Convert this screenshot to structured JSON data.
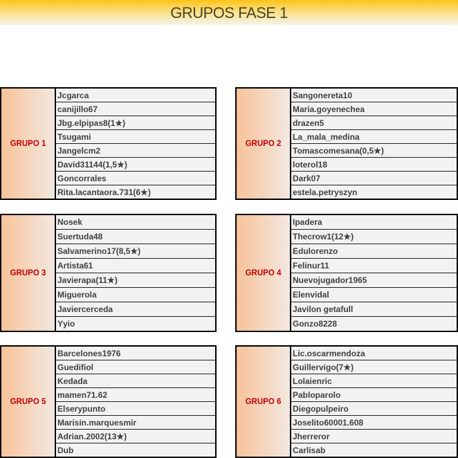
{
  "title": "GRUPOS FASE 1",
  "colors": {
    "group_label": "#c00000",
    "header_top": "#fcc419",
    "label_gradient": "#f8c39a"
  },
  "groups": [
    {
      "label": "GRUPO 1",
      "players": [
        "Jcgarca",
        "canijillo67",
        "Jbg.elpipas8(1★)",
        "Tsugami",
        "Jangelcm2",
        "David31144(1,5★)",
        "Goncorrales",
        "Rita.lacantaora.731(6★)"
      ]
    },
    {
      "label": "GRUPO 2",
      "players": [
        "Sangonereta10",
        "Maria.goyenechea",
        "drazen5",
        "La_mala_medina",
        "Tomascomesana(0,5★)",
        "loterol18",
        "Dark07",
        "estela.petryszyn"
      ]
    },
    {
      "label": "GRUPO 3",
      "players": [
        "Nosek",
        "Suertuda48",
        "Salvamerino17(8,5★)",
        "Artista61",
        "Javierapa(11★)",
        "Miguerola",
        "Javiercerceda",
        "Yyio"
      ]
    },
    {
      "label": "GRUPO 4",
      "players": [
        "Ipadera",
        "Thecrow1(12★)",
        "Edulorenzo",
        "Felinur11",
        "Nuevojugador1965",
        "Elenvidal",
        "Javilon getafull",
        "Gonzo8228"
      ]
    },
    {
      "label": "GRUPO 5",
      "players": [
        "Barcelones1976",
        "Guedifiol",
        "Kedada",
        "mamen71.62",
        "Elserypunto",
        "Marisin.marquesmir",
        "Adrian.2002(13★)",
        "Dub"
      ]
    },
    {
      "label": "GRUPO 6",
      "players": [
        "Lic.oscarmendoza",
        "Guillervigo(7★)",
        "Lolaienric",
        "Pabloparolo",
        "Diegopulpeiro",
        "Joselito60001.608",
        "Jherreror",
        "Carlisab"
      ]
    }
  ]
}
